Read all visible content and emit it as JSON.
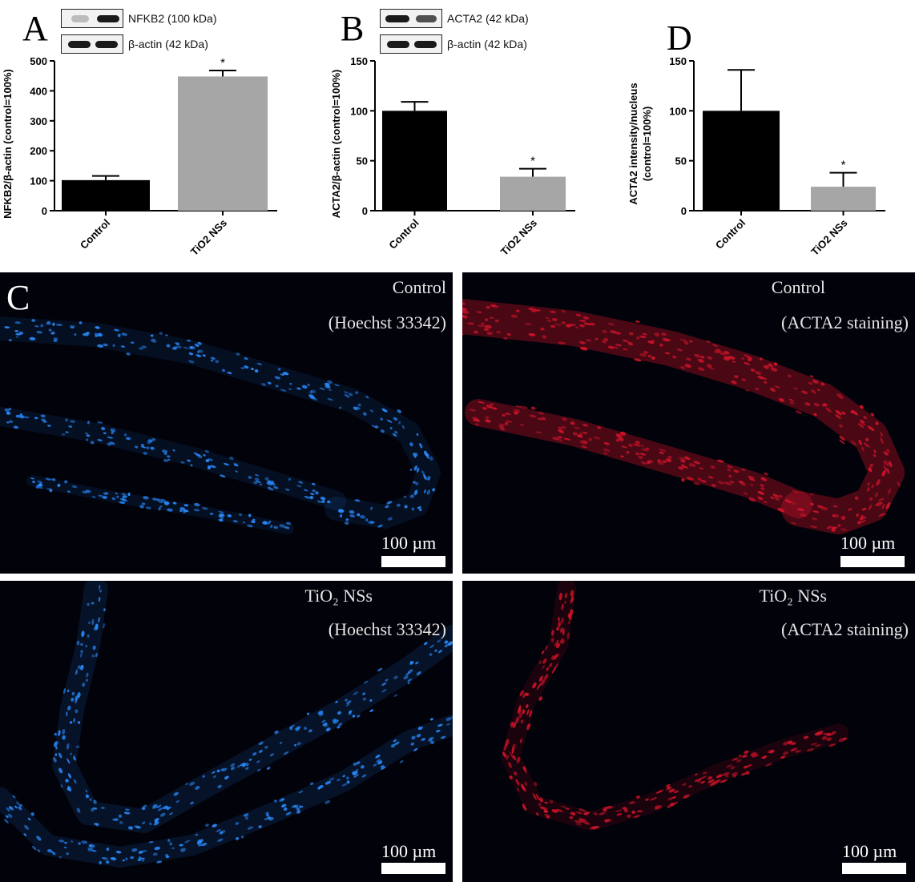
{
  "chart_data": [
    {
      "panel": "A",
      "type": "bar",
      "categories": [
        "Control",
        "TiO2 NSs"
      ],
      "values": [
        102,
        448
      ],
      "errors": [
        14,
        20
      ],
      "significance": [
        "",
        "*"
      ],
      "ylabel": "NFKB2/β-actin (control=100%)",
      "ylim": [
        0,
        500
      ],
      "yticks": [
        "0",
        "100",
        "200",
        "300",
        "400",
        "500"
      ],
      "colors": [
        "#000000",
        "#a6a6a6"
      ],
      "blot": {
        "protein": "NFKB2 (100 kDa)",
        "loading": "β-actin (42 kDa)"
      }
    },
    {
      "panel": "B",
      "type": "bar",
      "categories": [
        "Control",
        "TiO2 NSs"
      ],
      "values": [
        100,
        34
      ],
      "errors": [
        9,
        8
      ],
      "significance": [
        "",
        "*"
      ],
      "ylabel": "ACTA2/β-actin (control=100%)",
      "ylim": [
        0,
        150
      ],
      "yticks": [
        "0",
        "50",
        "100",
        "150"
      ],
      "colors": [
        "#000000",
        "#a6a6a6"
      ],
      "blot": {
        "protein": "ACTA2 (42 kDa)",
        "loading": "β-actin (42 kDa)"
      }
    },
    {
      "panel": "D",
      "type": "bar",
      "categories": [
        "Control",
        "TiO2 NSs"
      ],
      "values": [
        100,
        24
      ],
      "errors": [
        41,
        14
      ],
      "significance": [
        "",
        "*"
      ],
      "ylabel": "ACTA2 intensity/nucleus",
      "ylabel2": "(control=100%)",
      "ylim": [
        0,
        150
      ],
      "yticks": [
        "0",
        "50",
        "100",
        "150"
      ],
      "colors": [
        "#000000",
        "#a6a6a6"
      ]
    }
  ],
  "panel_letters": {
    "a": "A",
    "b": "B",
    "c": "C",
    "d": "D"
  },
  "micrographs": {
    "scale_label": "100 µm",
    "control_hoechst": {
      "line1": "Control",
      "line2": "(Hoechst 33342)"
    },
    "control_acta2": {
      "line1": "Control",
      "line2": "(ACTA2 staining)"
    },
    "tio2_hoechst": {
      "line1": "TiO₂ NSs",
      "line2": "(Hoechst 33342)"
    },
    "tio2_acta2": {
      "line1": "TiO₂ NSs",
      "line2": "(ACTA2 staining)"
    }
  },
  "colors": {
    "hoechst": "#2a8cff",
    "acta2": "#d0142a"
  }
}
